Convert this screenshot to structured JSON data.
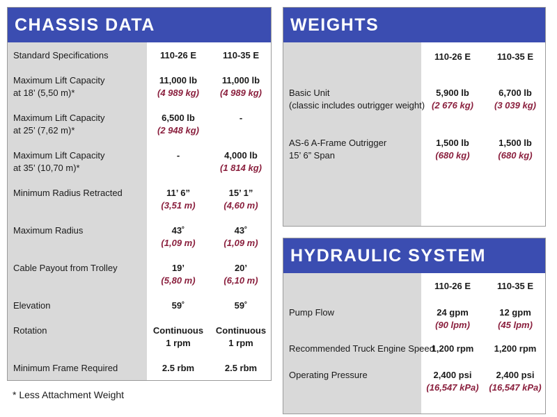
{
  "chassis": {
    "title": "CHASSIS DATA",
    "spec_header": "Standard Specifications",
    "col1": "110-26 E",
    "col2": "110-35 E",
    "rows": [
      {
        "label1": "Maximum Lift Capacity",
        "label2": "at 18’ (5,50 m)*",
        "v1": "11,000 lb",
        "m1": "(4 989 kg)",
        "v2": "11,000 lb",
        "m2": "(4 989 kg)"
      },
      {
        "label1": "Maximum Lift Capacity",
        "label2": "at 25’ (7,62 m)*",
        "v1": "6,500 lb",
        "m1": "(2 948 kg)",
        "v2": "-",
        "m2": ""
      },
      {
        "label1": "Maximum Lift Capacity",
        "label2": "at 35’ (10,70 m)*",
        "v1": "-",
        "m1": "",
        "v2": "4,000 lb",
        "m2": "(1 814 kg)"
      },
      {
        "label1": "Minimum Radius Retracted",
        "label2": "",
        "v1": "11’ 6”",
        "m1": "(3,51 m)",
        "v2": "15’ 1”",
        "m2": "(4,60 m)"
      },
      {
        "label1": "Maximum Radius",
        "label2": "",
        "v1": "43˚",
        "m1": "(1,09 m)",
        "v2": "43˚",
        "m2": "(1,09 m)"
      },
      {
        "label1": "Cable Payout from Trolley",
        "label2": "",
        "v1": "19’",
        "m1": "(5,80 m)",
        "v2": "20’",
        "m2": "(6,10 m)"
      },
      {
        "label1": "Elevation",
        "label2": "",
        "v1": "59˚",
        "m1": "",
        "v2": "59˚",
        "m2": ""
      },
      {
        "label1": "Rotation",
        "label2": "",
        "v1": "Continuous",
        "m1": "1 rpm",
        "v2": "Continuous",
        "m2": "1 rpm"
      },
      {
        "label1": "Minimum Frame Required",
        "label2": "",
        "v1": "2.5 rbm",
        "m1": "",
        "v2": "2.5 rbm",
        "m2": ""
      }
    ]
  },
  "weights": {
    "title": "WEIGHTS",
    "col1": "110-26 E",
    "col2": "110-35 E",
    "rows": [
      {
        "label1": "Basic Unit",
        "label2": "(classic includes outrigger weight)",
        "v1": "5,900 lb",
        "m1": "(2 676 kg)",
        "v2": "6,700 lb",
        "m2": "(3 039 kg)"
      },
      {
        "label1": "AS-6 A-Frame Outrigger",
        "label2": "15’ 6” Span",
        "v1": "1,500 lb",
        "m1": "(680 kg)",
        "v2": "1,500 lb",
        "m2": "(680 kg)"
      }
    ]
  },
  "hydraulic": {
    "title": "HYDRAULIC SYSTEM",
    "col1": "110-26 E",
    "col2": "110-35 E",
    "rows": [
      {
        "label1": "Pump Flow",
        "label2": "",
        "v1": "24 gpm",
        "m1": "(90 lpm)",
        "v2": "12 gpm",
        "m2": "(45 lpm)"
      },
      {
        "label1": "Recommended Truck Engine Speed",
        "label2": "",
        "v1": "1,200 rpm",
        "m1": "",
        "v2": "1,200 rpm",
        "m2": ""
      },
      {
        "label1": "Operating Pressure",
        "label2": "",
        "v1": "2,400 psi",
        "m1": "(16,547 kPa)",
        "v2": "2,400 psi",
        "m2": "(16,547 kPa)"
      }
    ]
  },
  "footnote": "* Less Attachment Weight"
}
